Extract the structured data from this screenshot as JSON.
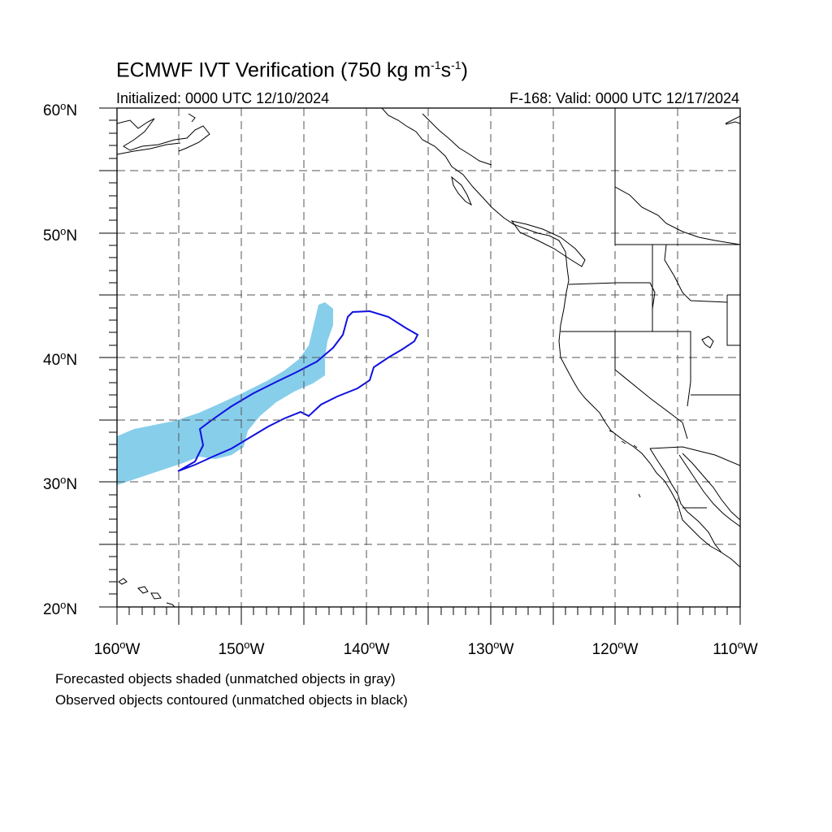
{
  "title": {
    "main": "ECMWF IVT Verification (750 kg m",
    "sup1": "-1",
    "mid": "s",
    "sup2": "-1",
    "end": ")"
  },
  "initialized": "Initialized: 0000 UTC 12/10/2024",
  "valid": "F-168: Valid: 0000 UTC 12/17/2024",
  "lat_labels": [
    "60",
    "50",
    "40",
    "30",
    "20"
  ],
  "lat_suffix": "N",
  "lon_labels": [
    "160",
    "150",
    "140",
    "130",
    "120",
    "110"
  ],
  "lon_suffix": "W",
  "legend": {
    "forecast": "Forecasted objects shaded (unmatched objects in gray)",
    "observed": "Observed objects contoured (unmatched objects in black)"
  },
  "colors": {
    "forecast_fill": "#87ceeb",
    "observed_line": "#1010e0",
    "grid": "#555555",
    "coast": "#000000"
  },
  "extent": {
    "lon": [
      -160,
      -110
    ],
    "lat": [
      20,
      60
    ]
  }
}
